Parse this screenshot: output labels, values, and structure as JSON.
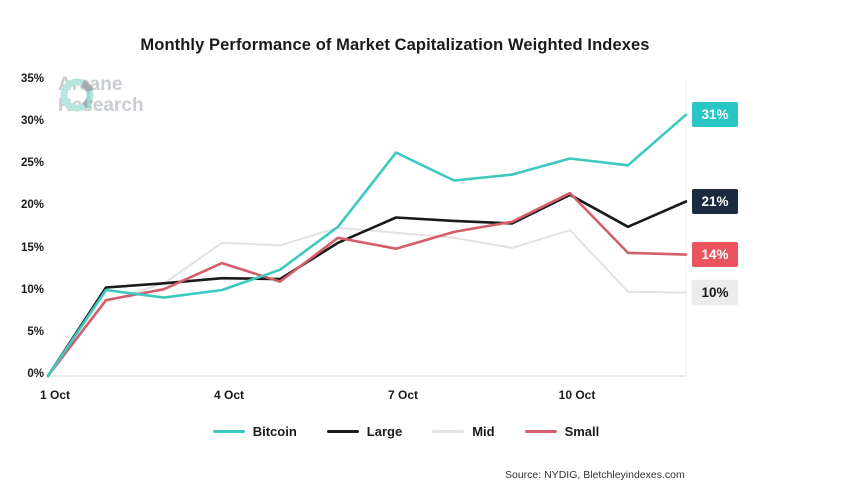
{
  "title": "Monthly Performance of Market Capitalization Weighted Indexes",
  "watermark": {
    "line1": "Arcane",
    "line2": "Research"
  },
  "source": "Source: NYDIG, Bletchleyindexes.com",
  "colors": {
    "axis_line": "#e3e3e3",
    "grid_faint": "#ededed",
    "text_dark": "#1a1a1a",
    "watermark_gray": "#c9cdd1",
    "logo_teal": "#b7e6e1",
    "logo_gray": "#a6abb0"
  },
  "chart_data": {
    "type": "line",
    "title": "Monthly Performance of Market Capitalization Weighted Indexes",
    "xlabel": "",
    "ylabel": "",
    "ylim": [
      0,
      35
    ],
    "grid": "baseline-only",
    "legend_position": "bottom",
    "x_days": [
      1,
      2,
      3,
      4,
      5,
      6,
      7,
      8,
      9,
      10,
      11,
      12
    ],
    "x_tick_days": [
      1,
      4,
      7,
      10
    ],
    "x_tick_labels": [
      "1 Oct",
      "4 Oct",
      "7 Oct",
      "10 Oct"
    ],
    "y_ticks": [
      "0%",
      "5%",
      "10%",
      "15%",
      "20%",
      "25%",
      "30%",
      "35%"
    ],
    "y_tick_values": [
      0,
      5,
      10,
      15,
      20,
      25,
      30,
      35
    ],
    "series": [
      {
        "name": "Bitcoin",
        "line_color": "#3ec9c0",
        "badge_bg": "#2ac6c6",
        "badge_text": "#ffffff",
        "end_label": "31%",
        "values": [
          0,
          10.2,
          9.3,
          10.2,
          12.6,
          17.7,
          26.5,
          23.2,
          23.9,
          25.8,
          25.0,
          31.0
        ]
      },
      {
        "name": "Large",
        "line_color": "#1a1a1a",
        "badge_bg": "#1b2a40",
        "badge_text": "#ffffff",
        "end_label": "21%",
        "values": [
          0,
          10.5,
          11.0,
          11.6,
          11.5,
          15.8,
          18.8,
          18.4,
          18.1,
          21.5,
          17.7,
          20.7
        ]
      },
      {
        "name": "Mid",
        "line_color": "#e2e2e2",
        "badge_bg": "#ececec",
        "badge_text": "#1a1a1a",
        "end_label": "10%",
        "values": [
          0,
          8.8,
          11.0,
          15.8,
          15.5,
          17.6,
          17.0,
          16.4,
          15.2,
          17.3,
          10.0,
          9.9
        ]
      },
      {
        "name": "Small",
        "line_color": "#d25f69",
        "badge_bg": "#e9545e",
        "badge_text": "#ffffff",
        "end_label": "14%",
        "values": [
          0,
          9.0,
          10.3,
          13.4,
          11.2,
          16.4,
          15.1,
          17.1,
          18.3,
          21.7,
          14.6,
          14.4
        ]
      }
    ],
    "draw_order": [
      "Mid",
      "Large",
      "Small",
      "Bitcoin"
    ],
    "legend_order": [
      "Bitcoin",
      "Large",
      "Mid",
      "Small"
    ]
  }
}
